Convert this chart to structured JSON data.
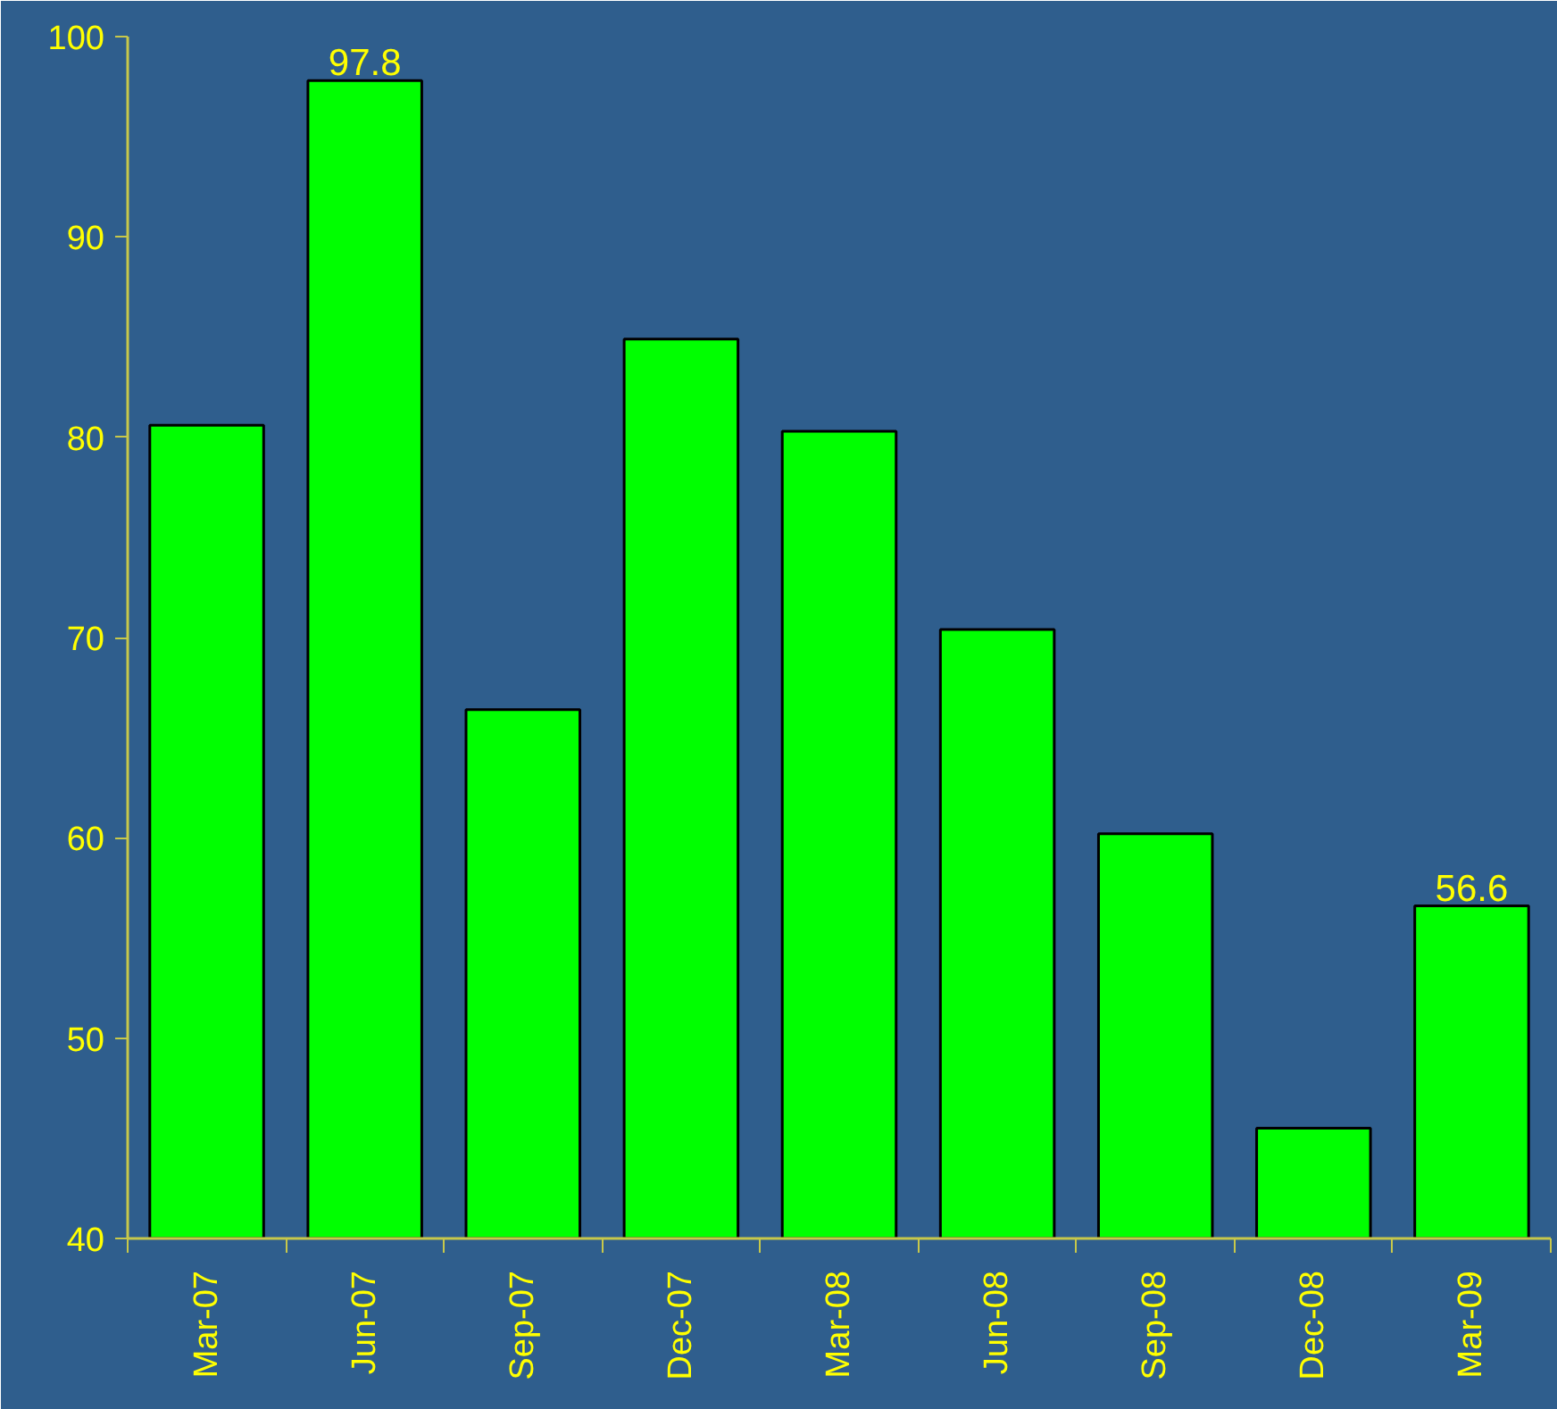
{
  "chart_data": {
    "type": "bar",
    "categories": [
      "Mar-07",
      "Jun-07",
      "Sep-07",
      "Dec-07",
      "Mar-08",
      "Jun-08",
      "Sep-08",
      "Dec-08",
      "Mar-09"
    ],
    "values": [
      80.6,
      97.8,
      66.4,
      84.9,
      80.3,
      70.4,
      60.2,
      45.5,
      56.6
    ],
    "value_labels": [
      null,
      "97.8",
      null,
      null,
      null,
      null,
      null,
      null,
      "56.6"
    ],
    "color": "#00ff00",
    "ylim": [
      40,
      100
    ],
    "yticks": [
      40,
      50,
      60,
      70,
      80,
      90,
      100
    ]
  }
}
